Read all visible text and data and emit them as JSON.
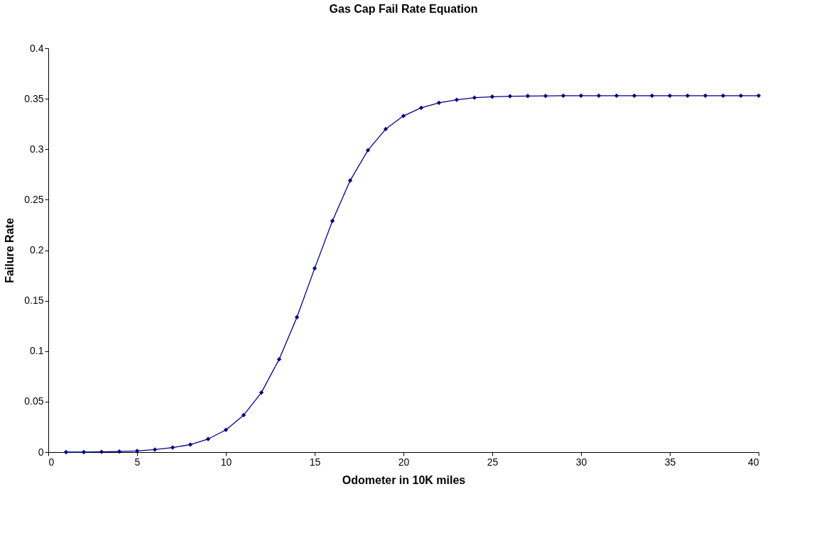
{
  "chart_data": {
    "type": "line",
    "title": "Gas Cap Fail Rate Equation",
    "xlabel": "Odometer in 10K miles",
    "ylabel": "Failure Rate",
    "x": [
      1,
      2,
      3,
      4,
      5,
      6,
      7,
      8,
      9,
      10,
      11,
      12,
      13,
      14,
      15,
      16,
      17,
      18,
      19,
      20,
      21,
      22,
      23,
      24,
      25,
      26,
      27,
      28,
      29,
      30,
      31,
      32,
      33,
      34,
      35,
      36,
      37,
      38,
      39,
      40
    ],
    "series": [
      {
        "color": "#000080",
        "values": [
          0.0,
          0.0,
          0.0003,
          0.0006,
          0.0012,
          0.0025,
          0.0045,
          0.0075,
          0.013,
          0.022,
          0.0366,
          0.059,
          0.092,
          0.1336,
          0.182,
          0.229,
          0.269,
          0.299,
          0.32,
          0.333,
          0.341,
          0.346,
          0.349,
          0.351,
          0.352,
          0.3525,
          0.3527,
          0.3528,
          0.353,
          0.353,
          0.353,
          0.353,
          0.353,
          0.353,
          0.353,
          0.353,
          0.353,
          0.353,
          0.353,
          0.353
        ]
      }
    ],
    "xlim": [
      0,
      40
    ],
    "xticks": [
      0,
      5,
      10,
      15,
      20,
      25,
      30,
      35,
      40
    ],
    "ylim": [
      0,
      0.4
    ],
    "yticks": [
      0,
      0.05,
      0.1,
      0.15,
      0.2,
      0.25,
      0.3,
      0.35,
      0.4
    ],
    "grid": false,
    "legend": false,
    "marker": "diamond",
    "line_style": "solid"
  }
}
